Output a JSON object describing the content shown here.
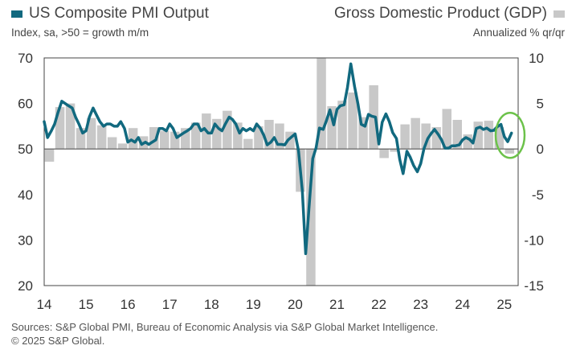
{
  "legend": {
    "left": {
      "label": "US Composite PMI Output",
      "color": "#11697f"
    },
    "right": {
      "label": "Gross Domestic Product (GDP)",
      "color": "#c8c8c8"
    }
  },
  "subtitle_left": "Index, sa, >50 = growth m/m",
  "subtitle_right": "Annualized % qr/qr",
  "footer": {
    "line1": "Sources: S&P Global PMI, Bureau of Economic Analysis via S&P Global Market Intelligence.",
    "line2": "© 2025 S&P Global."
  },
  "highlight_color": "#6cc24a",
  "chart_data": {
    "type": "line+bar",
    "x_tick_labels": [
      "14",
      "15",
      "16",
      "17",
      "18",
      "19",
      "20",
      "21",
      "22",
      "23",
      "24",
      "25"
    ],
    "left_axis": {
      "ticks": [
        20,
        30,
        40,
        50,
        60,
        70
      ],
      "range": [
        20,
        70
      ]
    },
    "right_axis": {
      "ticks": [
        10,
        5,
        0,
        -5,
        -10,
        -15
      ],
      "range": [
        -15,
        10
      ]
    },
    "x_range": [
      2014.0,
      2025.33
    ],
    "gdp_quarterly": [
      [
        2014.0,
        -1.4
      ],
      [
        2014.25,
        4.6
      ],
      [
        2014.5,
        5.0
      ],
      [
        2014.75,
        2.3
      ],
      [
        2015.0,
        3.4
      ],
      [
        2015.25,
        2.6
      ],
      [
        2015.5,
        1.3
      ],
      [
        2015.75,
        0.6
      ],
      [
        2016.0,
        2.3
      ],
      [
        2016.25,
        1.4
      ],
      [
        2016.5,
        2.4
      ],
      [
        2016.75,
        2.0
      ],
      [
        2017.0,
        1.9
      ],
      [
        2017.25,
        2.3
      ],
      [
        2017.5,
        2.9
      ],
      [
        2017.75,
        3.9
      ],
      [
        2018.0,
        3.3
      ],
      [
        2018.25,
        4.2
      ],
      [
        2018.5,
        2.9
      ],
      [
        2018.75,
        1.1
      ],
      [
        2019.0,
        2.5
      ],
      [
        2019.25,
        3.2
      ],
      [
        2019.5,
        2.8
      ],
      [
        2019.75,
        1.9
      ],
      [
        2020.0,
        -4.7
      ],
      [
        2020.25,
        -15.0
      ],
      [
        2020.5,
        10.0
      ],
      [
        2020.75,
        4.7
      ],
      [
        2021.0,
        5.3
      ],
      [
        2021.25,
        6.2
      ],
      [
        2021.5,
        3.5
      ],
      [
        2021.75,
        7.0
      ],
      [
        2022.0,
        -1.0
      ],
      [
        2022.25,
        -0.3
      ],
      [
        2022.5,
        2.7
      ],
      [
        2022.75,
        3.4
      ],
      [
        2023.0,
        2.8
      ],
      [
        2023.25,
        2.4
      ],
      [
        2023.5,
        4.4
      ],
      [
        2023.75,
        3.2
      ],
      [
        2024.0,
        1.6
      ],
      [
        2024.25,
        3.0
      ],
      [
        2024.5,
        3.1
      ],
      [
        2024.75,
        2.4
      ],
      [
        2025.0,
        -0.5
      ]
    ],
    "pmi_monthly": [
      [
        2014.0,
        56.0
      ],
      [
        2014.08,
        52.5
      ],
      [
        2014.17,
        54.0
      ],
      [
        2014.25,
        55.5
      ],
      [
        2014.33,
        58.0
      ],
      [
        2014.42,
        60.5
      ],
      [
        2014.5,
        60.0
      ],
      [
        2014.58,
        59.5
      ],
      [
        2014.67,
        59.0
      ],
      [
        2014.75,
        57.0
      ],
      [
        2014.83,
        55.5
      ],
      [
        2014.92,
        53.5
      ],
      [
        2015.0,
        54.0
      ],
      [
        2015.08,
        57.0
      ],
      [
        2015.17,
        59.0
      ],
      [
        2015.25,
        57.5
      ],
      [
        2015.33,
        56.0
      ],
      [
        2015.42,
        55.0
      ],
      [
        2015.5,
        55.5
      ],
      [
        2015.58,
        55.5
      ],
      [
        2015.67,
        55.0
      ],
      [
        2015.75,
        55.0
      ],
      [
        2015.83,
        56.0
      ],
      [
        2015.92,
        54.5
      ],
      [
        2016.0,
        51.5
      ],
      [
        2016.08,
        52.0
      ],
      [
        2016.17,
        51.5
      ],
      [
        2016.25,
        52.5
      ],
      [
        2016.33,
        51.0
      ],
      [
        2016.42,
        51.5
      ],
      [
        2016.5,
        51.0
      ],
      [
        2016.58,
        51.5
      ],
      [
        2016.67,
        52.0
      ],
      [
        2016.75,
        54.5
      ],
      [
        2016.83,
        54.5
      ],
      [
        2016.92,
        54.0
      ],
      [
        2017.0,
        55.5
      ],
      [
        2017.08,
        54.5
      ],
      [
        2017.17,
        52.5
      ],
      [
        2017.25,
        53.0
      ],
      [
        2017.33,
        53.5
      ],
      [
        2017.42,
        54.0
      ],
      [
        2017.5,
        54.5
      ],
      [
        2017.58,
        55.5
      ],
      [
        2017.67,
        55.5
      ],
      [
        2017.75,
        54.0
      ],
      [
        2017.83,
        54.5
      ],
      [
        2017.92,
        53.5
      ],
      [
        2018.0,
        53.5
      ],
      [
        2018.08,
        55.5
      ],
      [
        2018.17,
        54.5
      ],
      [
        2018.25,
        54.0
      ],
      [
        2018.33,
        55.5
      ],
      [
        2018.42,
        57.0
      ],
      [
        2018.5,
        56.5
      ],
      [
        2018.58,
        55.5
      ],
      [
        2018.67,
        53.5
      ],
      [
        2018.75,
        54.5
      ],
      [
        2018.83,
        54.0
      ],
      [
        2018.92,
        54.5
      ],
      [
        2019.0,
        54.0
      ],
      [
        2019.08,
        55.5
      ],
      [
        2019.17,
        54.5
      ],
      [
        2019.25,
        53.0
      ],
      [
        2019.33,
        50.9
      ],
      [
        2019.42,
        51.5
      ],
      [
        2019.5,
        52.5
      ],
      [
        2019.58,
        51.0
      ],
      [
        2019.67,
        51.0
      ],
      [
        2019.75,
        50.9
      ],
      [
        2019.83,
        52.0
      ],
      [
        2019.92,
        52.7
      ],
      [
        2020.0,
        53.3
      ],
      [
        2020.08,
        49.6
      ],
      [
        2020.17,
        40.9
      ],
      [
        2020.25,
        27.0
      ],
      [
        2020.33,
        37.0
      ],
      [
        2020.42,
        47.9
      ],
      [
        2020.5,
        50.3
      ],
      [
        2020.58,
        54.6
      ],
      [
        2020.67,
        54.3
      ],
      [
        2020.75,
        56.3
      ],
      [
        2020.83,
        58.6
      ],
      [
        2020.92,
        55.3
      ],
      [
        2021.0,
        58.7
      ],
      [
        2021.08,
        59.5
      ],
      [
        2021.17,
        59.7
      ],
      [
        2021.25,
        63.5
      ],
      [
        2021.33,
        68.7
      ],
      [
        2021.42,
        63.7
      ],
      [
        2021.5,
        59.9
      ],
      [
        2021.58,
        55.4
      ],
      [
        2021.67,
        55.0
      ],
      [
        2021.75,
        57.6
      ],
      [
        2021.83,
        57.2
      ],
      [
        2021.92,
        57.0
      ],
      [
        2022.0,
        51.1
      ],
      [
        2022.08,
        55.9
      ],
      [
        2022.17,
        57.7
      ],
      [
        2022.25,
        56.0
      ],
      [
        2022.33,
        53.6
      ],
      [
        2022.42,
        52.3
      ],
      [
        2022.5,
        47.7
      ],
      [
        2022.58,
        44.6
      ],
      [
        2022.67,
        49.5
      ],
      [
        2022.75,
        48.2
      ],
      [
        2022.83,
        46.4
      ],
      [
        2022.92,
        45.0
      ],
      [
        2023.0,
        46.8
      ],
      [
        2023.08,
        50.1
      ],
      [
        2023.17,
        52.3
      ],
      [
        2023.25,
        53.4
      ],
      [
        2023.33,
        54.3
      ],
      [
        2023.42,
        53.2
      ],
      [
        2023.5,
        52.0
      ],
      [
        2023.58,
        50.2
      ],
      [
        2023.67,
        50.2
      ],
      [
        2023.75,
        50.7
      ],
      [
        2023.83,
        50.7
      ],
      [
        2023.92,
        50.9
      ],
      [
        2024.0,
        52.0
      ],
      [
        2024.08,
        52.5
      ],
      [
        2024.17,
        52.1
      ],
      [
        2024.25,
        51.3
      ],
      [
        2024.33,
        54.5
      ],
      [
        2024.42,
        54.8
      ],
      [
        2024.5,
        54.3
      ],
      [
        2024.58,
        54.6
      ],
      [
        2024.67,
        54.0
      ],
      [
        2024.75,
        54.1
      ],
      [
        2024.83,
        54.9
      ],
      [
        2024.92,
        55.4
      ],
      [
        2025.0,
        52.7
      ],
      [
        2025.08,
        51.6
      ],
      [
        2025.17,
        53.5
      ]
    ]
  }
}
